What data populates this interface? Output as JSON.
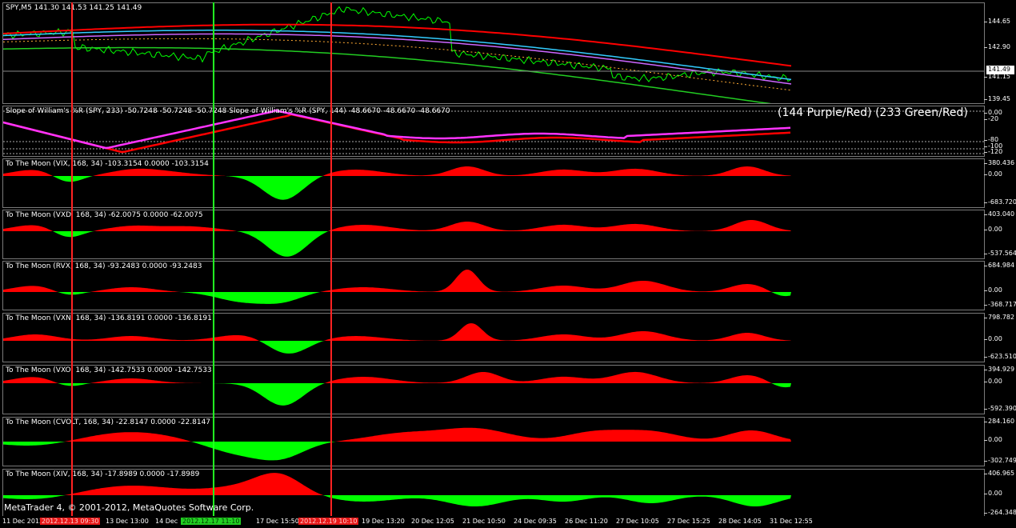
{
  "main_chart": {
    "title": "SPY,M5  141.30 141.53 141.25 141.49",
    "scale_labels": [
      "144.65",
      "142.90",
      "141.15",
      "139.45"
    ],
    "current_price": "141.49"
  },
  "williams_pane": {
    "title": "Slope of William's %R (SPY, 233) -50.7248 -50.7248 -50.7248  Slope of William's %R (SPY, 144) -48.6670 -48.6670 -48.6670",
    "legend": "(144  Purple/Red)  (233  Green/Red)",
    "scale_labels": [
      "0.00",
      "-20",
      "-80",
      "-100",
      "-120"
    ]
  },
  "moon_panes": [
    {
      "title": "To The Moon (VIX, 168, 34) -103.3154 0.0000 -103.3154",
      "scale_labels": [
        "380.436",
        "0.00",
        "-683.720"
      ]
    },
    {
      "title": "To The Moon (VXD, 168, 34) -62.0075 0.0000 -62.0075",
      "scale_labels": [
        "403.040",
        "0.00",
        "-537.564"
      ]
    },
    {
      "title": "To The Moon (RVX, 168, 34) -93.2483 0.0000 -93.2483",
      "scale_labels": [
        "684.984",
        "0.00",
        "-368.717"
      ]
    },
    {
      "title": "To The Moon (VXN, 168, 34) -136.8191 0.0000 -136.8191",
      "scale_labels": [
        "798.782",
        "0.00",
        "-623.510"
      ]
    },
    {
      "title": "To The Moon (VXO, 168, 34) -142.7533 0.0000 -142.7533",
      "scale_labels": [
        "394.929",
        "0.00",
        "-592.390"
      ]
    },
    {
      "title": "To The Moon (CVOLT, 168, 34) -22.8147 0.0000 -22.8147",
      "scale_labels": [
        "284.160",
        "0.00",
        "-302.749"
      ]
    },
    {
      "title": "To The Moon (XIV, 168, 34) -17.8989 0.0000 -17.8989",
      "scale_labels": [
        "406.965",
        "0.00",
        "-264.348"
      ]
    }
  ],
  "time_axis": {
    "labels": [
      "11 Dec 2012",
      "13 Dec 13:00",
      "14 Dec",
      "17 Dec 15:50",
      "19 Dec 13:20",
      "20 Dec 12:05",
      "21 Dec 10:50",
      "24 Dec 09:35",
      "26 Dec 11:20",
      "27 Dec 10:05",
      "27 Dec 15:25",
      "28 Dec 14:05",
      "31 Dec 12:55"
    ],
    "tag_red_1": "2012.12.13 09:30",
    "tag_green": "2012.12.17 11:10",
    "tag_red_2": "2012.12.19 10:10"
  },
  "watermark": "MetaTrader 4, © 2001-2012, MetaQuotes Software Corp.",
  "colors": {
    "red": "#ff0000",
    "green": "#00ff00",
    "purple": "#ff33ff",
    "cyan": "#33ccff",
    "orange": "#ffaa33"
  }
}
